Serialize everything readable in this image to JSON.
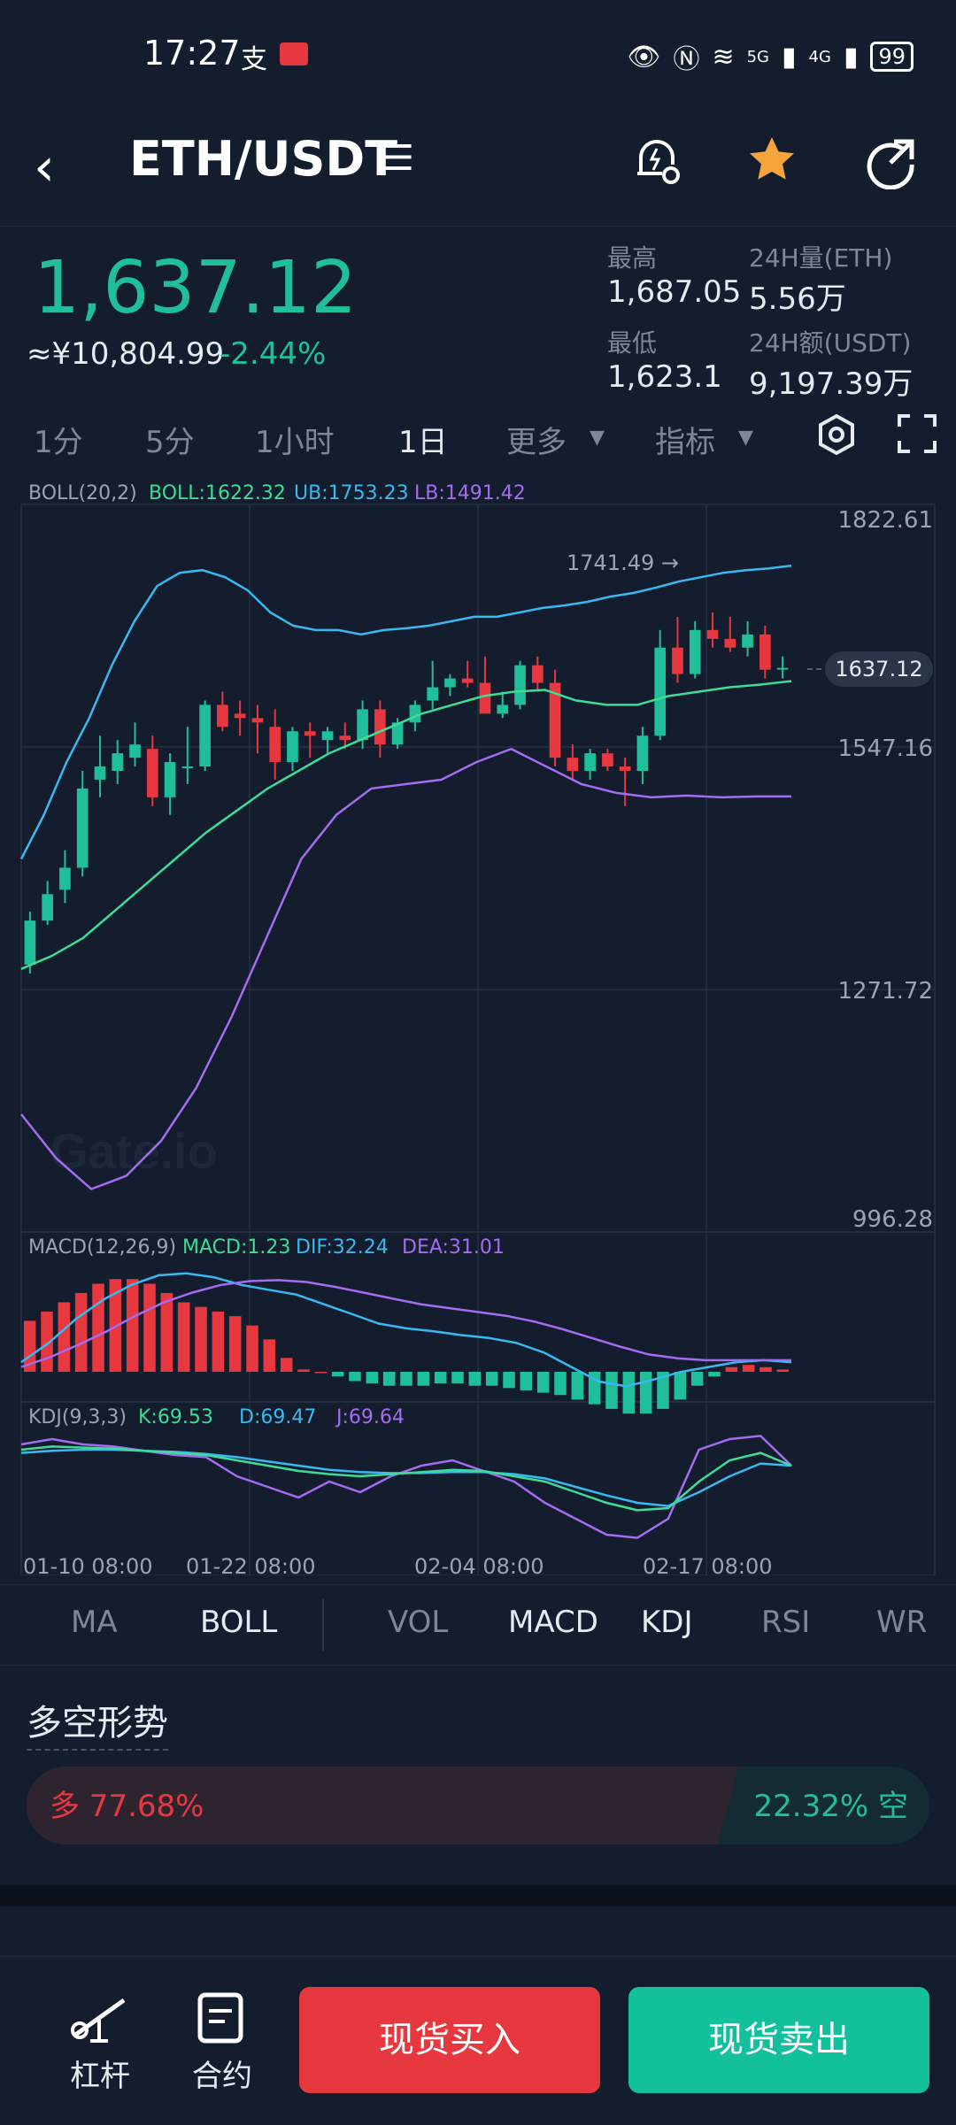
{
  "status": {
    "time": "17:27",
    "battery": "99",
    "net1": "5G",
    "net2": "4G"
  },
  "header": {
    "pair": "ETH/USDT"
  },
  "ticker": {
    "last": "1,637.12",
    "cny": "≈¥10,804.99",
    "change": "-2.44%",
    "high_label": "最高",
    "high": "1,687.05",
    "low_label": "最低",
    "low": "1,623.1",
    "vol_label": "24H量(ETH)",
    "vol": "5.56万",
    "amt_label": "24H额(USDT)",
    "amt": "9,197.39万"
  },
  "intervals": [
    "1分",
    "5分",
    "1小时",
    "1日",
    "更多",
    "指标"
  ],
  "colors": {
    "up": "#1fbf9a",
    "down": "#e8383f",
    "boll_mid": "#3ddc97",
    "boll_ub": "#3ab8f0",
    "boll_lb": "#a56bf0"
  },
  "chart_data": [
    {
      "type": "candlestick",
      "title": "",
      "legend": [
        "BOLL(20,2)",
        "BOLL:1622.32",
        "UB:1753.23",
        "LB:1491.42"
      ],
      "y_ticks": [
        "1822.61",
        "1547.16",
        "1271.72",
        "996.28"
      ],
      "ylim": [
        996.28,
        1822.61
      ],
      "x_ticks": [
        "01-10 08:00",
        "01-22 08:00",
        "02-04 08:00",
        "02-17 08:00"
      ],
      "last_price_label": "1637.12",
      "annotation": "1741.49 →",
      "candles": [
        [
          1300,
          1360,
          1290,
          1350
        ],
        [
          1350,
          1395,
          1345,
          1380
        ],
        [
          1385,
          1430,
          1370,
          1410
        ],
        [
          1410,
          1520,
          1400,
          1500
        ],
        [
          1510,
          1560,
          1490,
          1525
        ],
        [
          1520,
          1555,
          1505,
          1540
        ],
        [
          1535,
          1575,
          1525,
          1550
        ],
        [
          1545,
          1560,
          1480,
          1490
        ],
        [
          1490,
          1540,
          1470,
          1530
        ],
        [
          1525,
          1570,
          1505,
          1525
        ],
        [
          1525,
          1600,
          1520,
          1595
        ],
        [
          1595,
          1610,
          1565,
          1570
        ],
        [
          1585,
          1600,
          1560,
          1580
        ],
        [
          1580,
          1595,
          1540,
          1575
        ],
        [
          1570,
          1590,
          1510,
          1530
        ],
        [
          1530,
          1570,
          1520,
          1565
        ],
        [
          1565,
          1575,
          1535,
          1560
        ],
        [
          1555,
          1570,
          1540,
          1565
        ],
        [
          1560,
          1575,
          1545,
          1555
        ],
        [
          1555,
          1600,
          1545,
          1590
        ],
        [
          1590,
          1600,
          1535,
          1550
        ],
        [
          1550,
          1580,
          1545,
          1575
        ],
        [
          1575,
          1600,
          1565,
          1595
        ],
        [
          1600,
          1645,
          1590,
          1615
        ],
        [
          1615,
          1630,
          1605,
          1625
        ],
        [
          1625,
          1645,
          1615,
          1620
        ],
        [
          1620,
          1650,
          1585,
          1585
        ],
        [
          1585,
          1610,
          1580,
          1595
        ],
        [
          1595,
          1645,
          1590,
          1640
        ],
        [
          1640,
          1650,
          1610,
          1620
        ],
        [
          1620,
          1635,
          1525,
          1535
        ],
        [
          1535,
          1550,
          1510,
          1520
        ],
        [
          1520,
          1545,
          1510,
          1540
        ],
        [
          1540,
          1545,
          1520,
          1525
        ],
        [
          1525,
          1535,
          1480,
          1520
        ],
        [
          1520,
          1570,
          1505,
          1560
        ],
        [
          1560,
          1680,
          1555,
          1660
        ],
        [
          1660,
          1695,
          1620,
          1630
        ],
        [
          1630,
          1690,
          1625,
          1680
        ],
        [
          1680,
          1700,
          1660,
          1670
        ],
        [
          1670,
          1695,
          1655,
          1660
        ],
        [
          1660,
          1690,
          1650,
          1675
        ],
        [
          1675,
          1685,
          1625,
          1635
        ],
        [
          1635,
          1650,
          1625,
          1637
        ]
      ],
      "ub": [
        1420,
        1470,
        1530,
        1580,
        1640,
        1690,
        1730,
        1745,
        1748,
        1740,
        1725,
        1700,
        1685,
        1680,
        1680,
        1675,
        1680,
        1682,
        1685,
        1690,
        1695,
        1695,
        1700,
        1705,
        1708,
        1712,
        1718,
        1722,
        1728,
        1735,
        1740,
        1745,
        1748,
        1750,
        1753
      ],
      "mid": [
        1295,
        1310,
        1330,
        1360,
        1390,
        1420,
        1450,
        1475,
        1500,
        1520,
        1540,
        1555,
        1570,
        1585,
        1595,
        1605,
        1610,
        1612,
        1600,
        1595,
        1595,
        1605,
        1610,
        1615,
        1618,
        1622
      ],
      "lb": [
        1130,
        1080,
        1045,
        1060,
        1100,
        1160,
        1240,
        1330,
        1420,
        1470,
        1500,
        1505,
        1510,
        1530,
        1545,
        1525,
        1505,
        1495,
        1490,
        1492,
        1490,
        1491,
        1491
      ]
    },
    {
      "type": "bar",
      "title": "",
      "legend": [
        "MACD(12,26,9)",
        "MACD:1.23",
        "DIF:32.24",
        "DEA:31.01"
      ],
      "histogram": [
        22,
        26,
        30,
        34,
        38,
        40,
        40,
        38,
        34,
        30,
        28,
        26,
        24,
        20,
        14,
        6,
        1,
        0,
        -2,
        -4,
        -5,
        -6,
        -6,
        -6,
        -5,
        -5,
        -6,
        -6,
        -7,
        -8,
        -9,
        -10,
        -12,
        -14,
        -16,
        -18,
        -18,
        -16,
        -12,
        -6,
        -2,
        2,
        3,
        2,
        1
      ],
      "dif": [
        10,
        30,
        55,
        75,
        90,
        100,
        102,
        98,
        90,
        85,
        80,
        70,
        60,
        50,
        45,
        42,
        38,
        35,
        30,
        20,
        5,
        -10,
        -15,
        -8,
        0,
        5,
        10,
        12,
        10
      ],
      "dea": [
        5,
        15,
        28,
        42,
        58,
        72,
        82,
        90,
        94,
        95,
        93,
        88,
        82,
        76,
        70,
        66,
        62,
        58,
        52,
        44,
        35,
        26,
        18,
        14,
        12,
        12,
        12,
        12
      ]
    },
    {
      "type": "line",
      "title": "",
      "legend": [
        "KDJ(9,3,3)",
        "K:69.53",
        "D:69.47",
        "J:69.64"
      ],
      "k": [
        85,
        88,
        87,
        86,
        84,
        82,
        80,
        75,
        70,
        65,
        62,
        60,
        62,
        64,
        66,
        65,
        60,
        55,
        45,
        35,
        28,
        30,
        55,
        75,
        82,
        70
      ],
      "d": [
        82,
        84,
        85,
        85,
        84,
        83,
        81,
        78,
        74,
        70,
        66,
        64,
        63,
        63,
        64,
        64,
        62,
        58,
        50,
        42,
        35,
        32,
        45,
        60,
        72,
        70
      ],
      "j": [
        90,
        95,
        90,
        88,
        84,
        80,
        78,
        60,
        50,
        40,
        55,
        45,
        60,
        70,
        75,
        65,
        55,
        35,
        20,
        5,
        2,
        20,
        85,
        95,
        98,
        70
      ]
    }
  ],
  "indicator_tabs": [
    "MA",
    "BOLL",
    "VOL",
    "MACD",
    "KDJ",
    "RSI",
    "WR"
  ],
  "sentiment": {
    "title": "多空形势",
    "long": "多 77.68%",
    "short": "22.32% 空",
    "long_pct": 77.68
  },
  "actions": {
    "leverage": "杠杆",
    "contract": "合约",
    "buy": "现货买入",
    "sell": "现货卖出"
  }
}
